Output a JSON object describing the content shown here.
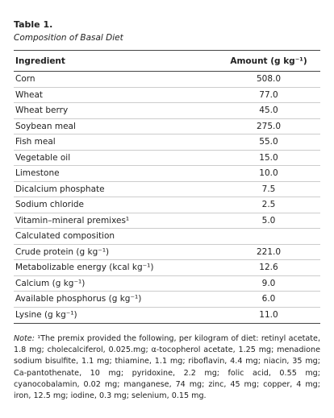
{
  "table": {
    "title": "Table 1.",
    "caption": "Composition of Basal Diet",
    "columns": [
      "Ingredient",
      "Amount (g kg⁻¹)"
    ],
    "rows": [
      [
        "Corn",
        "508.0"
      ],
      [
        "Wheat",
        "77.0"
      ],
      [
        "Wheat berry",
        "45.0"
      ],
      [
        "Soybean meal",
        "275.0"
      ],
      [
        "Fish meal",
        "55.0"
      ],
      [
        "Vegetable oil",
        "15.0"
      ],
      [
        "Limestone",
        "10.0"
      ],
      [
        "Dicalcium phosphate",
        "7.5"
      ],
      [
        "Sodium chloride",
        "2.5"
      ],
      [
        "Vitamin–mineral premixes¹",
        "5.0"
      ],
      [
        "Calculated composition"
      ],
      [
        "Crude protein (g kg⁻¹)",
        "221.0"
      ],
      [
        "Metabolizable energy (kcal kg⁻¹)",
        "12.6"
      ],
      [
        "Calcium (g kg⁻¹)",
        "9.0"
      ],
      [
        "Available phosphorus (g kg⁻¹)",
        "6.0"
      ],
      [
        "Lysine (g kg⁻¹)",
        "11.0"
      ]
    ],
    "note": {
      "label": "Note:",
      "text": "¹The premix provided the following, per kilogram of diet: retinyl acetate, 1.8 mg; cholecalciferol, 0.025.mg; α-tocopherol acetate, 1.25 mg; menadione sodium bisulfite, 1.1 mg; thiamine, 1.1 mg; riboflavin, 4.4 mg; niacin, 35 mg; Ca-pantothenate, 10 mg; pyridoxine, 2.2 mg; folic acid, 0.55 mg; cyanocobalamin, 0.02 mg; manganese, 74 mg; zinc, 45 mg; copper, 4 mg; iron, 12.5 mg; iodine, 0.3 mg; selenium, 0.15 mg."
    }
  }
}
